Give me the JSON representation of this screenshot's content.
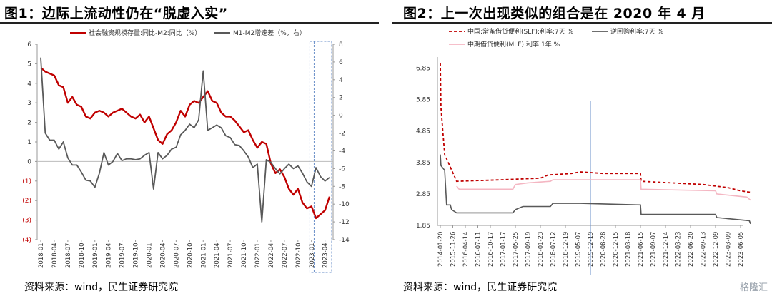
{
  "left": {
    "title": "图1：边际上流动性仍在“脱虚入实”",
    "source": "资料来源：wind，民生证券研究院",
    "chart_data": {
      "type": "line",
      "legend": [
        "社会融资规模存量:同比-M2:同比（%）",
        "M1-M2增速差（%，右）"
      ],
      "legend_placement": "top",
      "x": [
        "2018-01",
        "2018-02",
        "2018-03",
        "2018-04",
        "2018-05",
        "2018-06",
        "2018-07",
        "2018-08",
        "2018-09",
        "2018-10",
        "2018-11",
        "2018-12",
        "2019-01",
        "2019-02",
        "2019-03",
        "2019-04",
        "2019-05",
        "2019-06",
        "2019-07",
        "2019-08",
        "2019-09",
        "2019-10",
        "2019-11",
        "2019-12",
        "2020-01",
        "2020-02",
        "2020-03",
        "2020-04",
        "2020-05",
        "2020-06",
        "2020-07",
        "2020-08",
        "2020-09",
        "2020-10",
        "2020-11",
        "2020-12",
        "2021-01",
        "2021-02",
        "2021-03",
        "2021-04",
        "2021-05",
        "2021-06",
        "2021-07",
        "2021-08",
        "2021-09",
        "2021-10",
        "2021-11",
        "2021-12",
        "2022-01",
        "2022-02",
        "2022-03",
        "2022-04",
        "2022-05",
        "2022-06",
        "2022-07",
        "2022-08",
        "2022-09",
        "2022-10",
        "2022-11",
        "2022-12",
        "2023-01",
        "2023-02",
        "2023-03",
        "2023-04",
        "2023-05"
      ],
      "xticks": [
        "2018-01",
        "2018-04",
        "2018-07",
        "2018-10",
        "2019-01",
        "2019-04",
        "2019-07",
        "2019-10",
        "2020-01",
        "2020-04",
        "2020-07",
        "2020-10",
        "2021-01",
        "2021-04",
        "2021-07",
        "2021-10",
        "2022-01",
        "2022-04",
        "2022-07",
        "2022-10",
        "2023-01",
        "2023-04"
      ],
      "ylim": [
        -4,
        6
      ],
      "yticks": [
        "(4)",
        "(3)",
        "(2)",
        "(1)",
        "0",
        "1",
        "2",
        "3",
        "4",
        "5",
        "6"
      ],
      "y2lim": [
        -14,
        8
      ],
      "y2ticks": [
        "-14",
        "-12",
        "-10",
        "-8",
        "-6",
        "-4",
        "-2",
        "0",
        "2",
        "4",
        "6",
        "8"
      ],
      "series": [
        {
          "name": "社会融资规模存量:同比-M2:同比（%）",
          "color": "#c00000",
          "axis": "left",
          "values": [
            4.8,
            4.6,
            4.5,
            4.4,
            3.9,
            3.8,
            3.0,
            3.3,
            2.9,
            2.8,
            2.3,
            2.2,
            2.5,
            2.6,
            2.5,
            2.3,
            2.5,
            2.6,
            2.7,
            2.5,
            2.3,
            2.2,
            2.4,
            2.0,
            2.3,
            1.7,
            1.1,
            0.9,
            1.4,
            1.6,
            2.0,
            2.6,
            2.3,
            2.9,
            3.1,
            3.0,
            3.3,
            3.6,
            3.1,
            3.0,
            2.5,
            2.3,
            2.3,
            2.1,
            1.8,
            1.5,
            1.6,
            1.1,
            0.7,
            1.0,
            0.9,
            -0.1,
            -0.6,
            -0.4,
            -0.8,
            -1.4,
            -1.7,
            -1.4,
            -2.1,
            -2.4,
            -2.3,
            -2.9,
            -2.7,
            -2.5,
            -1.8
          ]
        },
        {
          "name": "M1-M2增速差（%，右）",
          "color": "#595959",
          "axis": "right",
          "values": [
            6.5,
            -2.0,
            -2.8,
            -2.8,
            -3.8,
            -3.0,
            -4.8,
            -5.6,
            -5.6,
            -6.4,
            -7.3,
            -7.4,
            -8.1,
            -6.5,
            -4.2,
            -5.6,
            -5.2,
            -4.3,
            -5.1,
            -4.9,
            -4.9,
            -5.0,
            -4.9,
            -4.5,
            -4.2,
            -8.3,
            -4.2,
            -4.9,
            -4.5,
            -3.8,
            -3.6,
            -2.2,
            -1.7,
            -1.0,
            -1.4,
            -0.5,
            5.0,
            -1.7,
            -1.4,
            -1.1,
            -1.4,
            -2.3,
            -2.5,
            -3.3,
            -3.4,
            -4.0,
            -4.7,
            -5.9,
            -5.5,
            -12.0,
            -5.0,
            -5.3,
            -6.0,
            -6.6,
            -6.0,
            -5.5,
            -6.0,
            -5.7,
            -6.5,
            -7.5,
            -8.0,
            -5.9,
            -6.9,
            -7.4,
            -7.0
          ]
        }
      ]
    }
  },
  "right": {
    "title": "图2：上一次出现类似的组合是在 2020 年 4 月",
    "source": "资料来源：wind，民生证券研究院",
    "watermark": "格隆汇",
    "chart_data": {
      "type": "line",
      "legend": [
        "中国:常备借贷便利(SLF):利率:7天 %",
        "逆回购利率:7天 %",
        "中期借贷便利(MLF):利率:1年 %"
      ],
      "legend_placement": "top",
      "xticks": [
        "2014-01-20",
        "2015-11-26",
        "2016-04-14",
        "2016-07-11",
        "2016-10-17",
        "2017-01-17",
        "2017-05-25",
        "2017-09-19",
        "2018-01-23",
        "2018-07-12",
        "2018-12-19",
        "2019-05-07",
        "2019-12-19",
        "2020-08-28",
        "2020-12-15",
        "2021-03-18",
        "2021-06-15",
        "2021-09-07",
        "2021-12-14",
        "2022-03-23",
        "2022-06-20",
        "2022-09-13",
        "2022-12-09",
        "2023-03-09",
        "2023-06-05"
      ],
      "ylim": [
        1.85,
        7.2
      ],
      "yticks": [
        "1.85",
        "2.85",
        "3.85",
        "4.85",
        "5.85",
        "6.85"
      ],
      "event_marker": "2020-04",
      "series": [
        {
          "name": "中国:常备借贷便利(SLF):利率:7天 %",
          "color": "#c00000",
          "style": "dashed",
          "points": [
            [
              0,
              7.0
            ],
            [
              0.05,
              5.6
            ],
            [
              0.35,
              4.1
            ],
            [
              1.2,
              3.35
            ],
            [
              1.3,
              3.25
            ],
            [
              5,
              3.3
            ],
            [
              8,
              3.35
            ],
            [
              8.6,
              3.45
            ],
            [
              10.5,
              3.5
            ],
            [
              11.2,
              3.55
            ],
            [
              13,
              3.5
            ],
            [
              16,
              3.5
            ],
            [
              16.05,
              3.25
            ],
            [
              21,
              3.15
            ],
            [
              23,
              3.05
            ],
            [
              24,
              2.95
            ],
            [
              24.8,
              2.9
            ]
          ]
        },
        {
          "name": "逆回购利率:7天 %",
          "color": "#595959",
          "style": "solid",
          "points": [
            [
              0,
              4.1
            ],
            [
              0.05,
              3.75
            ],
            [
              0.35,
              3.6
            ],
            [
              0.5,
              2.5
            ],
            [
              0.8,
              2.5
            ],
            [
              0.9,
              2.35
            ],
            [
              1.3,
              2.25
            ],
            [
              5.8,
              2.25
            ],
            [
              6,
              2.35
            ],
            [
              6.6,
              2.45
            ],
            [
              8.8,
              2.45
            ],
            [
              9,
              2.55
            ],
            [
              11,
              2.55
            ],
            [
              11.2,
              2.55
            ],
            [
              16,
              2.5
            ],
            [
              16.05,
              2.2
            ],
            [
              22,
              2.2
            ],
            [
              22.1,
              2.1
            ],
            [
              24.7,
              2.0
            ],
            [
              24.8,
              1.9
            ]
          ]
        },
        {
          "name": "中期借贷便利(MLF):利率:1年 %",
          "color": "#f4b6c2",
          "style": "solid",
          "points": [
            [
              1.3,
              3.1
            ],
            [
              1.5,
              3.0
            ],
            [
              5.8,
              3.0
            ],
            [
              6,
              3.15
            ],
            [
              7,
              3.2
            ],
            [
              8.8,
              3.25
            ],
            [
              9,
              3.3
            ],
            [
              16,
              3.3
            ],
            [
              16.05,
              3.0
            ],
            [
              22,
              2.95
            ],
            [
              22.1,
              2.85
            ],
            [
              24.5,
              2.75
            ],
            [
              24.8,
              2.65
            ]
          ]
        }
      ]
    }
  }
}
